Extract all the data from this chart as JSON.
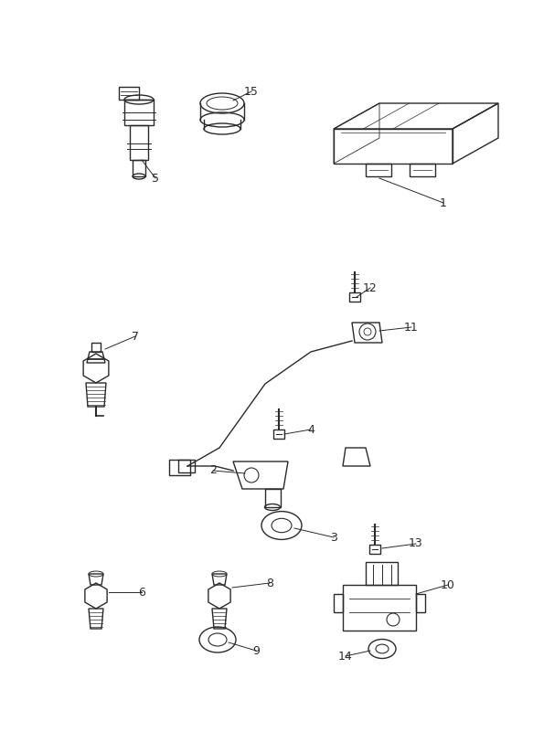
{
  "bg_color": "#ffffff",
  "line_color": "#2a2a2a",
  "figsize": [
    5.83,
    8.24
  ],
  "dpi": 100,
  "lw": 1.0
}
